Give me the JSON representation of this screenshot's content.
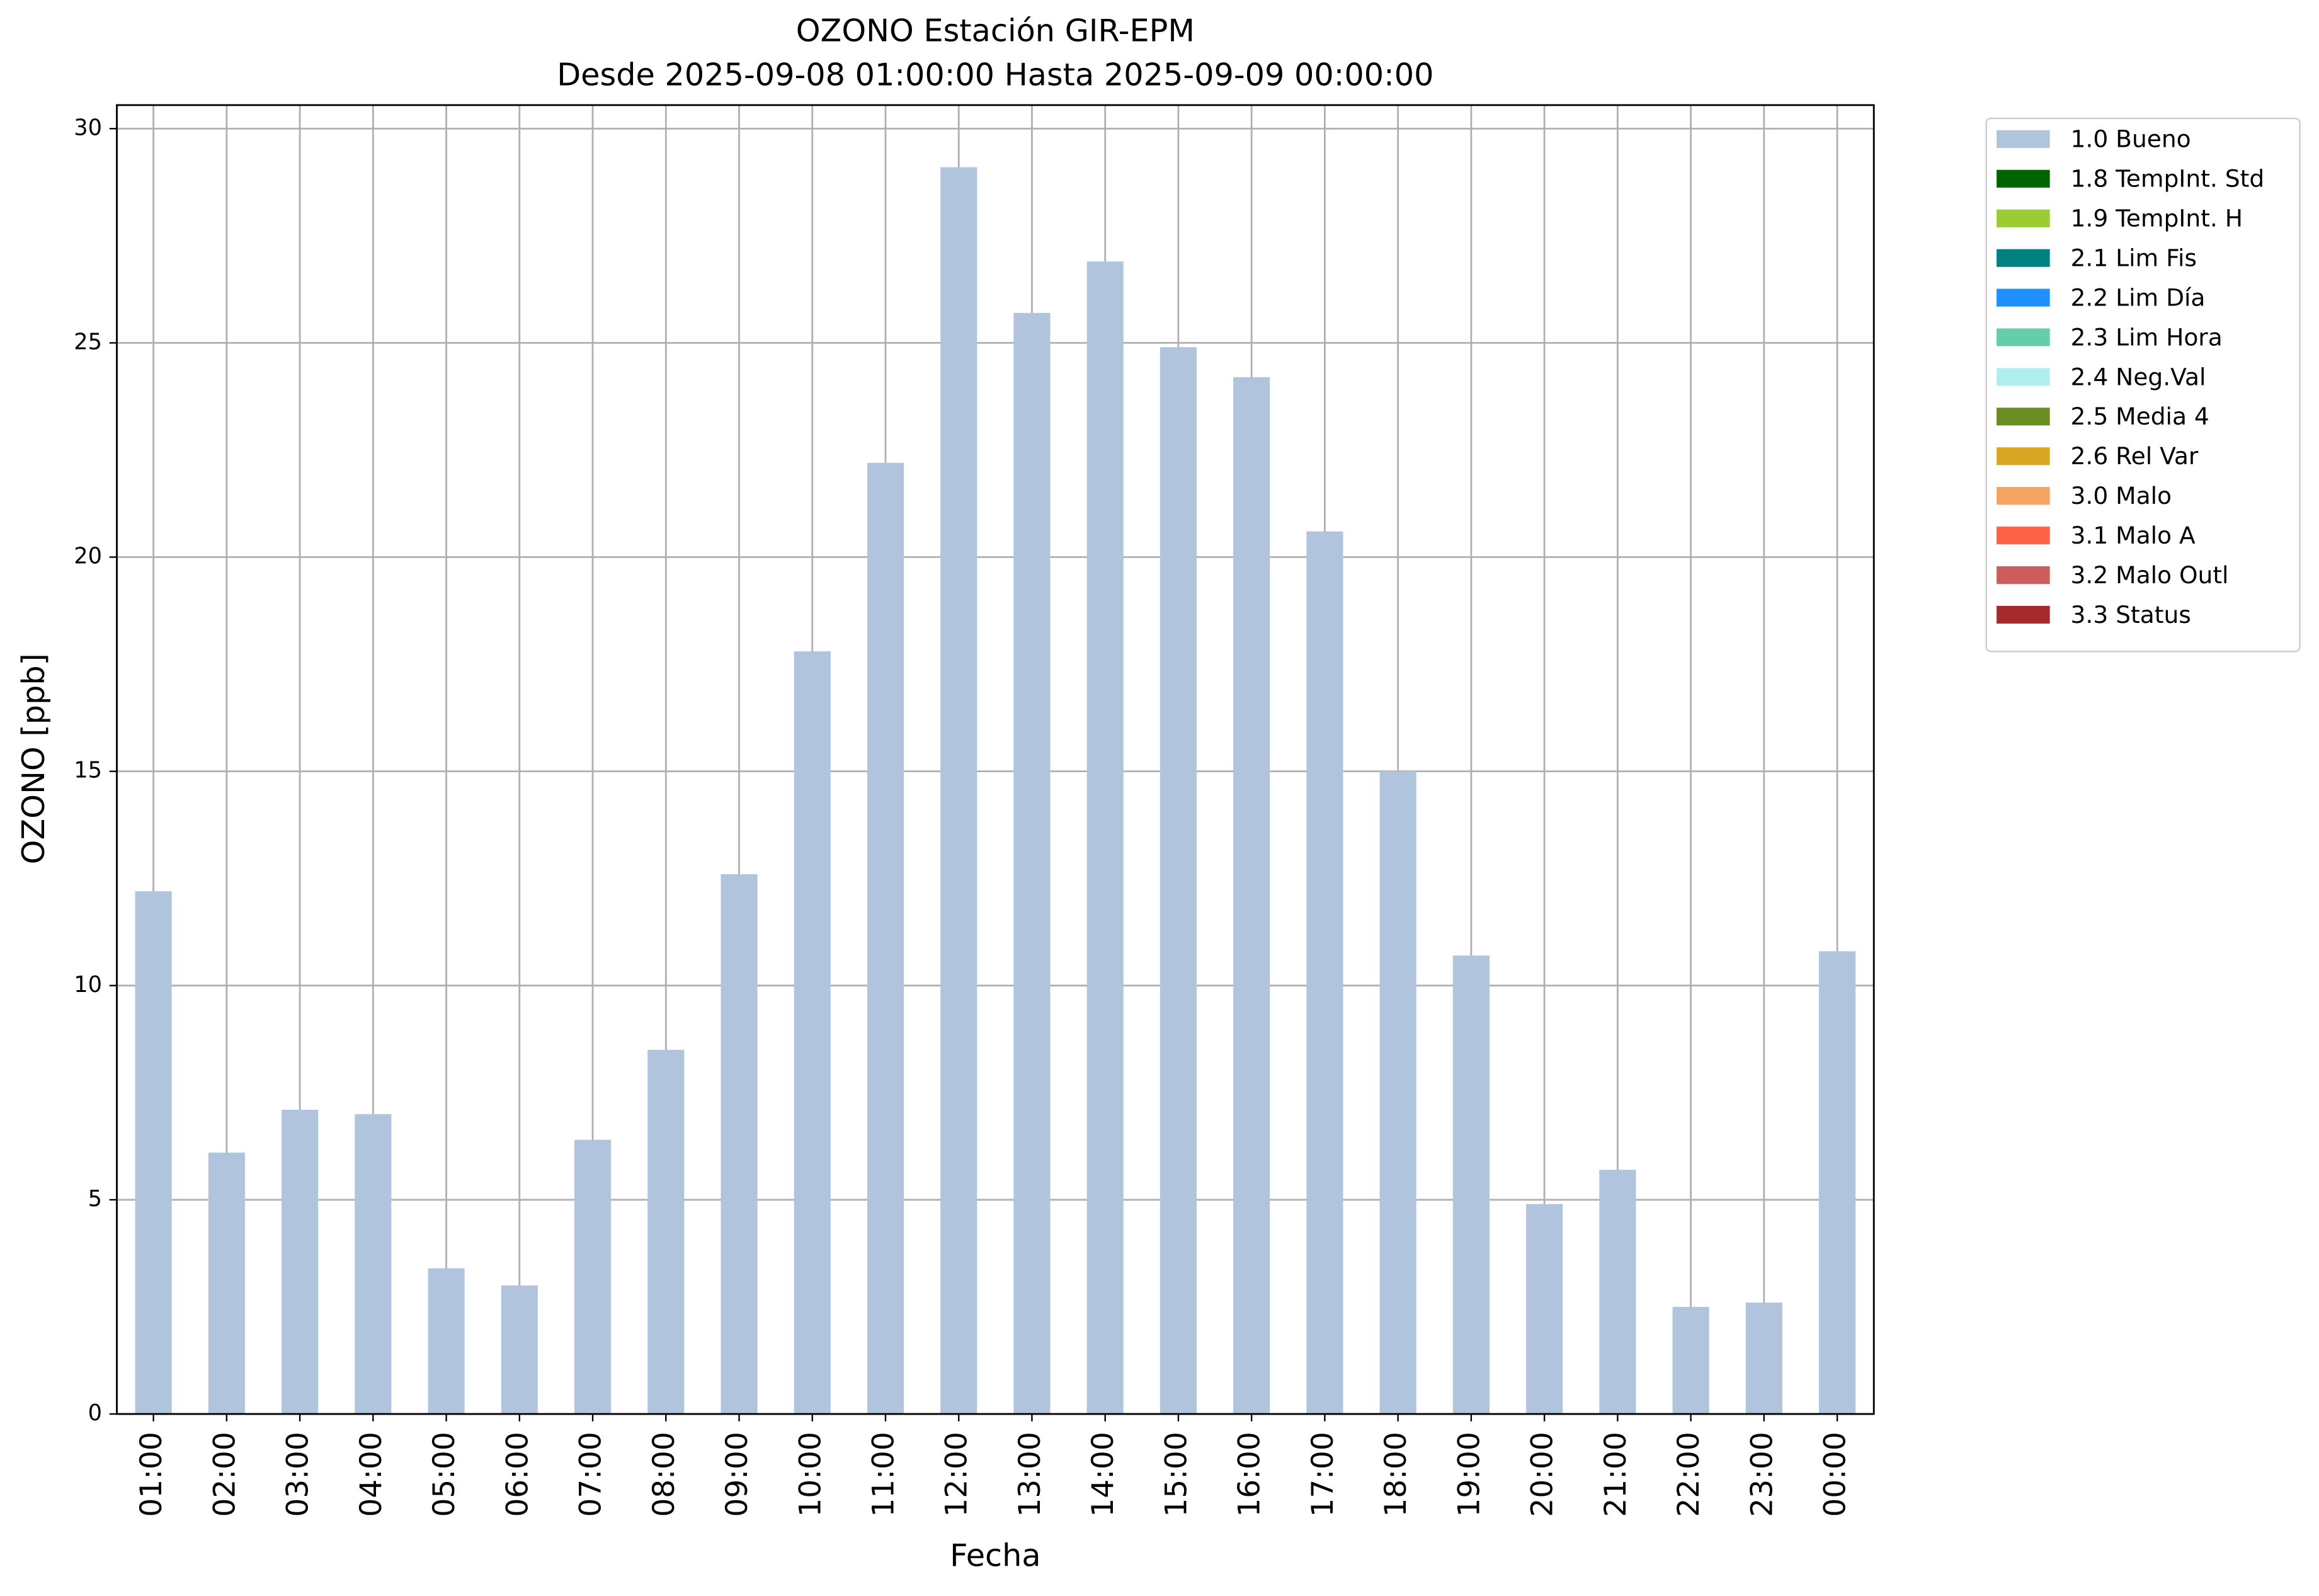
{
  "chart_data": {
    "type": "stacked-bar",
    "title": "OZONO Estación GIR-EPM",
    "subtitle": "Desde 2025-09-08 01:00:00 Hasta 2025-09-09 00:00:00",
    "x_label": "Fecha",
    "y_label": "OZONO [ppb]",
    "categories": [
      "01:00",
      "02:00",
      "03:00",
      "04:00",
      "05:00",
      "06:00",
      "07:00",
      "08:00",
      "09:00",
      "10:00",
      "11:00",
      "12:00",
      "13:00",
      "14:00",
      "15:00",
      "16:00",
      "17:00",
      "18:00",
      "19:00",
      "20:00",
      "21:00",
      "22:00",
      "23:00",
      "00:00"
    ],
    "series": [
      {
        "name": "1.0 Bueno",
        "color": "#b0c4de",
        "values": [
          12.2,
          6.1,
          7.1,
          7.0,
          3.4,
          3.0,
          6.4,
          8.5,
          12.6,
          17.8,
          22.2,
          29.1,
          25.7,
          26.9,
          24.9,
          24.2,
          20.6,
          15.0,
          10.7,
          4.9,
          5.7,
          2.5,
          2.6,
          10.8
        ]
      },
      {
        "name": "1.8 TempInt. Std",
        "color": "#006400",
        "values": [
          null,
          null,
          null,
          null,
          null,
          null,
          null,
          null,
          null,
          null,
          null,
          null,
          null,
          null,
          null,
          null,
          null,
          null,
          null,
          null,
          null,
          null,
          null,
          null
        ]
      },
      {
        "name": "1.9 TempInt. H",
        "color": "#9acd32",
        "values": [
          null,
          null,
          null,
          null,
          null,
          null,
          null,
          null,
          null,
          null,
          null,
          null,
          null,
          null,
          null,
          null,
          null,
          null,
          null,
          null,
          null,
          null,
          null,
          null
        ]
      },
      {
        "name": "2.1 Lim Fis",
        "color": "#008080",
        "values": [
          null,
          null,
          null,
          null,
          null,
          null,
          null,
          null,
          null,
          null,
          null,
          null,
          null,
          null,
          null,
          null,
          null,
          null,
          null,
          null,
          null,
          null,
          null,
          null
        ]
      },
      {
        "name": "2.2 Lim Día",
        "color": "#1e90ff",
        "values": [
          null,
          null,
          null,
          null,
          null,
          null,
          null,
          null,
          null,
          null,
          null,
          null,
          null,
          null,
          null,
          null,
          null,
          null,
          null,
          null,
          null,
          null,
          null,
          null
        ]
      },
      {
        "name": "2.3 Lim Hora",
        "color": "#66cdaa",
        "values": [
          null,
          null,
          null,
          null,
          null,
          null,
          null,
          null,
          null,
          null,
          null,
          null,
          null,
          null,
          null,
          null,
          null,
          null,
          null,
          null,
          null,
          null,
          null,
          null
        ]
      },
      {
        "name": "2.4 Neg.Val",
        "color": "#afeeee",
        "values": [
          null,
          null,
          null,
          null,
          null,
          null,
          null,
          null,
          null,
          null,
          null,
          null,
          null,
          null,
          null,
          null,
          null,
          null,
          null,
          null,
          null,
          null,
          null,
          null
        ]
      },
      {
        "name": "2.5 Media 4",
        "color": "#6b8e23",
        "values": [
          null,
          null,
          null,
          null,
          null,
          null,
          null,
          null,
          null,
          null,
          null,
          null,
          null,
          null,
          null,
          null,
          null,
          null,
          null,
          null,
          null,
          null,
          null,
          null
        ]
      },
      {
        "name": "2.6 Rel Var",
        "color": "#daa520",
        "values": [
          null,
          null,
          null,
          null,
          null,
          null,
          null,
          null,
          null,
          null,
          null,
          null,
          null,
          null,
          null,
          null,
          null,
          null,
          null,
          null,
          null,
          null,
          null,
          null
        ]
      },
      {
        "name": "3.0 Malo",
        "color": "#f4a460",
        "values": [
          null,
          null,
          null,
          null,
          null,
          null,
          null,
          null,
          null,
          null,
          null,
          null,
          null,
          null,
          null,
          null,
          null,
          null,
          null,
          null,
          null,
          null,
          null,
          null
        ]
      },
      {
        "name": "3.1 Malo A",
        "color": "#ff6347",
        "values": [
          null,
          null,
          null,
          null,
          null,
          null,
          null,
          null,
          null,
          null,
          null,
          null,
          null,
          null,
          null,
          null,
          null,
          null,
          null,
          null,
          null,
          null,
          null,
          null
        ]
      },
      {
        "name": "3.2 Malo Outl",
        "color": "#cd5c5c",
        "values": [
          null,
          null,
          null,
          null,
          null,
          null,
          null,
          null,
          null,
          null,
          null,
          null,
          null,
          null,
          null,
          null,
          null,
          null,
          null,
          null,
          null,
          null,
          null,
          null
        ]
      },
      {
        "name": "3.3 Status",
        "color": "#a52a2a",
        "values": [
          null,
          null,
          null,
          null,
          null,
          null,
          null,
          null,
          null,
          null,
          null,
          null,
          null,
          null,
          null,
          null,
          null,
          null,
          null,
          null,
          null,
          null,
          null,
          null
        ]
      }
    ],
    "ylim": [
      0,
      30.55
    ],
    "yticks": [
      0,
      5,
      10,
      15,
      20,
      25,
      30
    ],
    "grid": true,
    "legend": "outside-upper-right"
  }
}
